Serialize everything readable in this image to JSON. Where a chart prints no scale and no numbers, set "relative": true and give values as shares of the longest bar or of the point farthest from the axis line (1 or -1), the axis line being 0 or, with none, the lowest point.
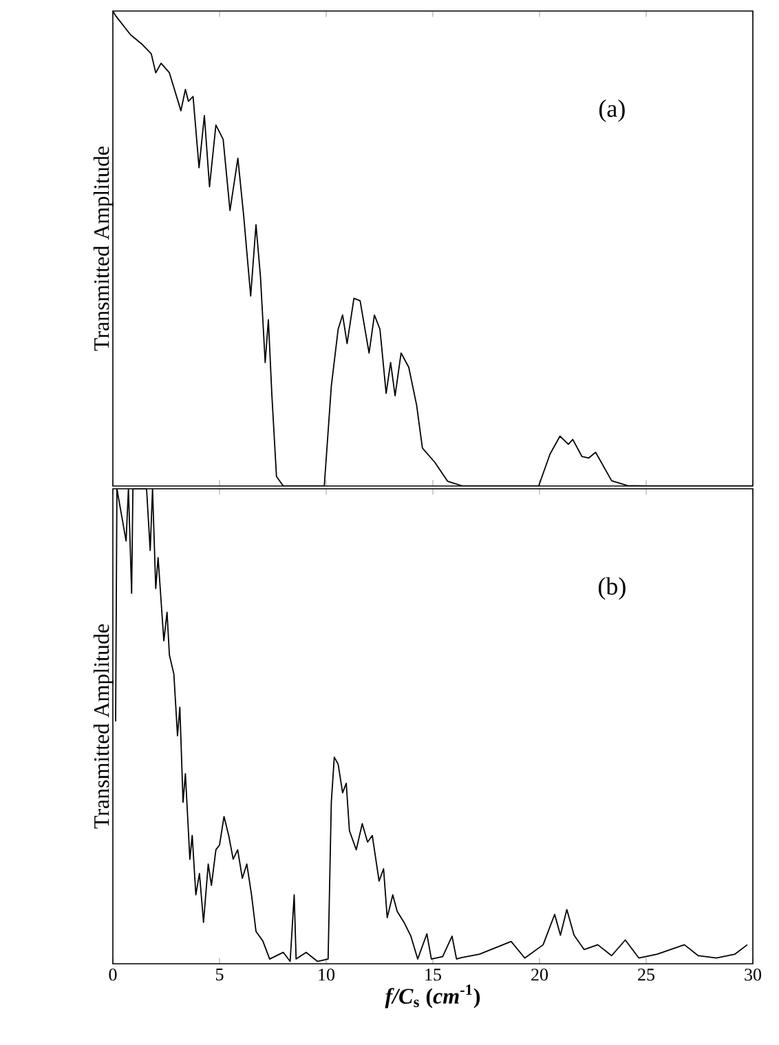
{
  "chart_data": [
    {
      "type": "line",
      "relative": true,
      "ylabel": "Transmitted Amplitude",
      "annotations": [
        "(a)"
      ],
      "xlim": [
        0,
        30
      ],
      "xticks": [
        0,
        5,
        10,
        15,
        20,
        25,
        30
      ],
      "tick_labels": false,
      "marker": "none",
      "line_style": "solid",
      "series": [
        {
          "color": "#000000",
          "x": [
            0,
            0.13,
            0.83,
            1.37,
            1.8,
            2.01,
            2.26,
            2.65,
            3.19,
            3.4,
            3.54,
            3.76,
            4.04,
            4.29,
            4.53,
            4.83,
            5.17,
            5.49,
            5.86,
            6.13,
            6.46,
            6.71,
            6.92,
            7.14,
            7.29,
            7.45,
            7.67,
            7.99,
            9.91,
            10.24,
            10.56,
            10.77,
            10.98,
            11.3,
            11.59,
            12.01,
            12.26,
            12.52,
            12.81,
            13.02,
            13.23,
            13.51,
            13.87,
            14.24,
            14.51,
            15.09,
            15.69,
            16.4,
            19.96,
            20.49,
            20.96,
            21.35,
            21.56,
            21.99,
            22.31,
            22.63,
            23.38,
            24.12,
            25,
            30
          ],
          "values": [
            1.0,
            0.99,
            0.95,
            0.93,
            0.91,
            0.87,
            0.89,
            0.87,
            0.79,
            0.835,
            0.81,
            0.82,
            0.67,
            0.78,
            0.63,
            0.76,
            0.73,
            0.58,
            0.69,
            0.57,
            0.4,
            0.55,
            0.44,
            0.26,
            0.35,
            0.195,
            0.02,
            0,
            0,
            0.21,
            0.33,
            0.36,
            0.3,
            0.395,
            0.39,
            0.28,
            0.36,
            0.33,
            0.195,
            0.26,
            0.19,
            0.28,
            0.25,
            0.17,
            0.08,
            0.05,
            0.01,
            0,
            0,
            0.067,
            0.105,
            0.088,
            0.098,
            0.062,
            0.059,
            0.071,
            0.011,
            0.001,
            0,
            0
          ]
        }
      ]
    },
    {
      "type": "line",
      "relative": true,
      "xlabel": "*f/C*$_{s}$  (*cm*$^{-1}$)",
      "ylabel": "Transmitted Amplitude",
      "annotations": [
        "(b)"
      ],
      "xlim": [
        0,
        30
      ],
      "xticks": [
        0,
        5,
        10,
        15,
        20,
        25,
        30
      ],
      "tick_labels": "x",
      "marker": "none",
      "line_style": "solid",
      "series": [
        {
          "color": "#000000",
          "x": [
            0.13,
            0.19,
            0.62,
            0.73,
            0.88,
            0.94,
            1.58,
            1.75,
            1.86,
            2.01,
            2.12,
            2.39,
            2.54,
            2.65,
            2.86,
            3.03,
            3.14,
            3.29,
            3.4,
            3.61,
            3.72,
            3.89,
            4.06,
            4.25,
            4.47,
            4.62,
            4.83,
            5.0,
            5.21,
            5.43,
            5.64,
            5.85,
            6.07,
            6.28,
            6.5,
            6.71,
            7.03,
            7.35,
            7.99,
            8.31,
            8.5,
            8.59,
            9.06,
            9.59,
            10.09,
            10.24,
            10.38,
            10.56,
            10.77,
            10.94,
            11.09,
            11.41,
            11.69,
            11.94,
            12.16,
            12.48,
            12.69,
            12.86,
            13.12,
            13.33,
            13.65,
            13.97,
            14.29,
            14.72,
            14.93,
            15.46,
            15.9,
            16.11,
            16.33,
            17.18,
            18.67,
            19.31,
            20.17,
            20.71,
            20.98,
            21.28,
            21.62,
            22.09,
            22.73,
            23.38,
            24.02,
            24.66,
            25.51,
            26.79,
            27.44,
            28.29,
            29.15,
            29.74
          ],
          "values": [
            0.51,
            1.0,
            0.89,
            1.0,
            0.78,
            1.0,
            1.0,
            0.87,
            1.0,
            0.79,
            0.855,
            0.68,
            0.74,
            0.65,
            0.61,
            0.48,
            0.54,
            0.34,
            0.4,
            0.22,
            0.27,
            0.145,
            0.19,
            0.087,
            0.21,
            0.165,
            0.24,
            0.25,
            0.31,
            0.27,
            0.22,
            0.24,
            0.18,
            0.21,
            0.145,
            0.068,
            0.048,
            0.01,
            0.024,
            0.005,
            0.145,
            0.01,
            0.024,
            0.005,
            0.01,
            0.34,
            0.435,
            0.42,
            0.36,
            0.38,
            0.28,
            0.24,
            0.295,
            0.256,
            0.27,
            0.174,
            0.2,
            0.097,
            0.145,
            0.11,
            0.087,
            0.058,
            0.01,
            0.063,
            0.01,
            0.015,
            0.058,
            0.01,
            0.013,
            0.02,
            0.047,
            0.012,
            0.04,
            0.104,
            0.06,
            0.114,
            0.06,
            0.03,
            0.04,
            0.017,
            0.05,
            0.012,
            0.02,
            0.04,
            0.017,
            0.012,
            0.02,
            0.04
          ]
        }
      ]
    }
  ]
}
